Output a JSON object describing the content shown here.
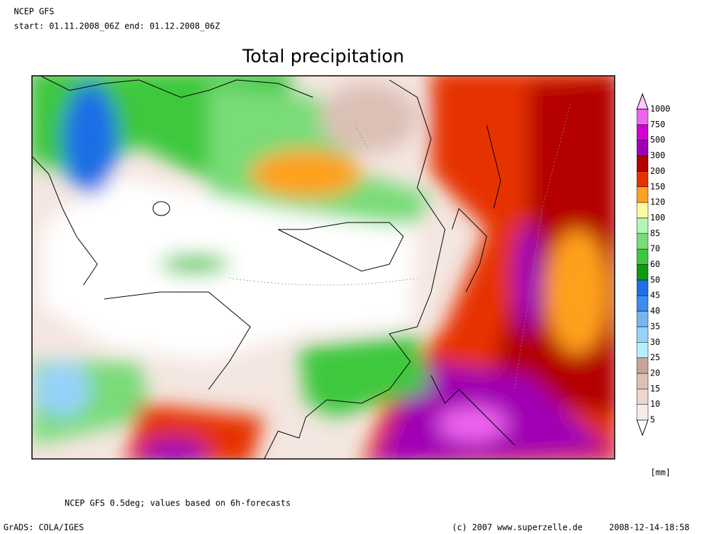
{
  "header": {
    "model": "NCEP GFS",
    "period": "start: 01.11.2008_06Z  end: 01.12.2008_06Z"
  },
  "title": "Total precipitation",
  "legend": {
    "unit": "[mm]",
    "levels": [
      5,
      10,
      15,
      20,
      25,
      30,
      35,
      40,
      45,
      50,
      60,
      70,
      85,
      100,
      120,
      150,
      200,
      300,
      500,
      750,
      1000
    ],
    "colors": [
      "#ffffff",
      "#f8ece6",
      "#ecd6ce",
      "#dcc0b6",
      "#c8a498",
      "#b4f0fa",
      "#96d2fa",
      "#78b4f0",
      "#3c8cf0",
      "#1e6ee6",
      "#0f9b0f",
      "#3cc83c",
      "#78dc78",
      "#b4f5b4",
      "#fafaa0",
      "#ffa01e",
      "#e63200",
      "#b40000",
      "#a000b4",
      "#d200d2",
      "#f064f0",
      "#ffc8ff"
    ]
  },
  "footer": {
    "note": "NCEP GFS 0.5deg; values based on 6h-forecasts",
    "software": "GrADS: COLA/IGES",
    "credit": "(c) 2007 www.superzelle.de",
    "timestamp": "2008-12-14-18:58"
  }
}
